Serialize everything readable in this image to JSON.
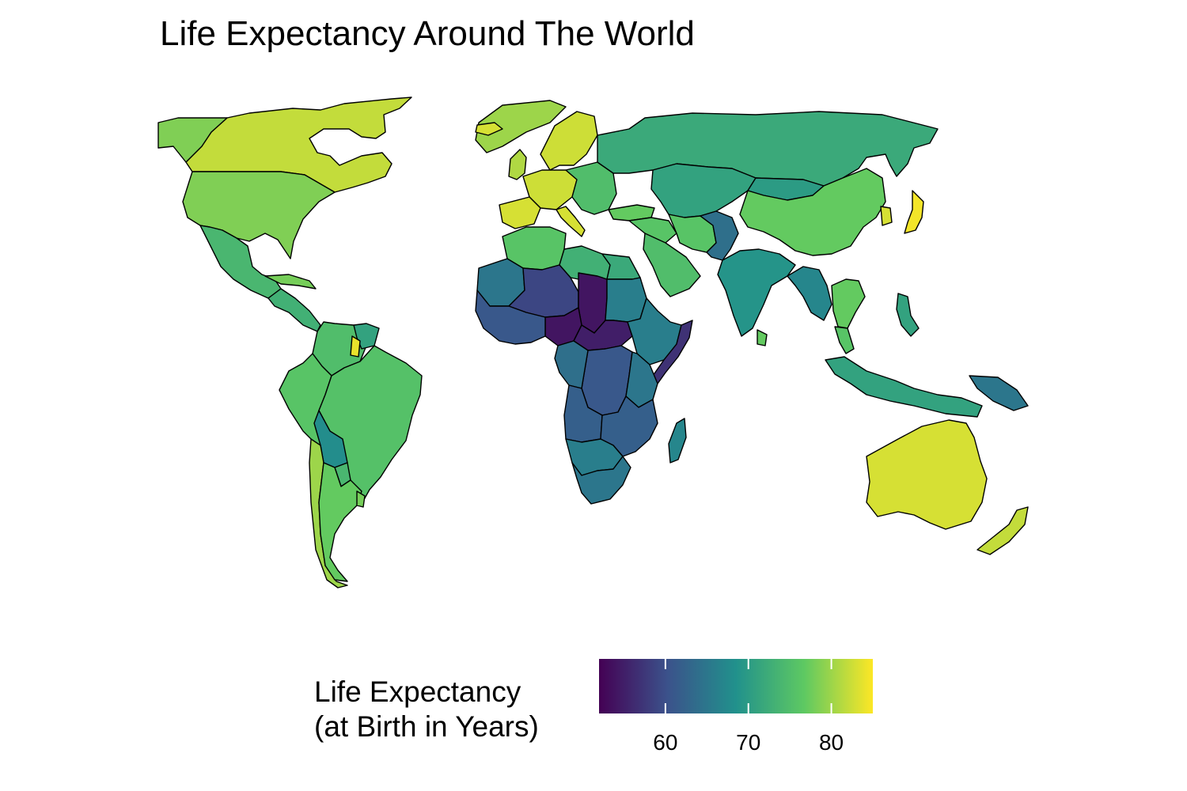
{
  "title": "Life Expectancy Around The World",
  "legend": {
    "title_line1": "Life Expectancy",
    "title_line2": "(at Birth in Years)",
    "min": 52,
    "max": 85,
    "ticks": [
      {
        "value": 60,
        "label": "60"
      },
      {
        "value": 70,
        "label": "70"
      },
      {
        "value": 80,
        "label": "80"
      }
    ],
    "palette": [
      "#440154",
      "#3b528b",
      "#21918c",
      "#5ec962",
      "#fde725"
    ]
  },
  "chart_data": {
    "type": "choropleth",
    "title": "Life Expectancy Around The World",
    "value_label": "Life Expectancy (at Birth in Years)",
    "color_scale": "viridis",
    "range": [
      52,
      85
    ],
    "regions": [
      {
        "name": "Canada",
        "value": 82
      },
      {
        "name": "Alaska / United States",
        "value": 78.5
      },
      {
        "name": "United States",
        "value": 78.5
      },
      {
        "name": "Greenland",
        "value": 80
      },
      {
        "name": "Mexico",
        "value": 74
      },
      {
        "name": "Central America",
        "value": 73
      },
      {
        "name": "Cuba",
        "value": 78
      },
      {
        "name": "Colombia / Venezuela",
        "value": 75
      },
      {
        "name": "Guyana / Suriname",
        "value": 71
      },
      {
        "name": "French Guiana",
        "value": 84
      },
      {
        "name": "Ecuador / Peru",
        "value": 76
      },
      {
        "name": "Brazil",
        "value": 75.5
      },
      {
        "name": "Bolivia",
        "value": 68
      },
      {
        "name": "Paraguay",
        "value": 74
      },
      {
        "name": "Chile",
        "value": 80
      },
      {
        "name": "Argentina",
        "value": 77
      },
      {
        "name": "Uruguay",
        "value": 78
      },
      {
        "name": "Iceland",
        "value": 83
      },
      {
        "name": "Scandinavia",
        "value": 82.5
      },
      {
        "name": "United Kingdom",
        "value": 81
      },
      {
        "name": "Western Europe",
        "value": 82.5
      },
      {
        "name": "Spain / Portugal",
        "value": 83
      },
      {
        "name": "Italy",
        "value": 83
      },
      {
        "name": "Eastern Europe",
        "value": 75
      },
      {
        "name": "Russia",
        "value": 72
      },
      {
        "name": "Kazakhstan / Central Asia",
        "value": 71
      },
      {
        "name": "Mongolia",
        "value": 70
      },
      {
        "name": "China",
        "value": 77
      },
      {
        "name": "Japan",
        "value": 84.5
      },
      {
        "name": "South Korea",
        "value": 83
      },
      {
        "name": "Turkey",
        "value": 77
      },
      {
        "name": "Middle East",
        "value": 76
      },
      {
        "name": "Saudi Arabia",
        "value": 75
      },
      {
        "name": "Iran",
        "value": 76
      },
      {
        "name": "Afghanistan / Pakistan",
        "value": 64
      },
      {
        "name": "India",
        "value": 69
      },
      {
        "name": "Myanmar / SE Asia",
        "value": 67
      },
      {
        "name": "Thailand / Vietnam",
        "value": 77
      },
      {
        "name": "Malaysia",
        "value": 76
      },
      {
        "name": "Sri Lanka",
        "value": 77
      },
      {
        "name": "Indonesia",
        "value": 71
      },
      {
        "name": "Philippines",
        "value": 71
      },
      {
        "name": "Papua New Guinea",
        "value": 65
      },
      {
        "name": "Australia",
        "value": 83
      },
      {
        "name": "New Zealand",
        "value": 82
      },
      {
        "name": "Morocco / Algeria",
        "value": 76
      },
      {
        "name": "Libya",
        "value": 73
      },
      {
        "name": "Egypt",
        "value": 72
      },
      {
        "name": "Western Sahara / Mauritania",
        "value": 65
      },
      {
        "name": "Mali / Niger",
        "value": 59
      },
      {
        "name": "Chad",
        "value": 54
      },
      {
        "name": "Nigeria",
        "value": 54
      },
      {
        "name": "West Africa coast",
        "value": 61
      },
      {
        "name": "Sudan",
        "value": 66
      },
      {
        "name": "South Sudan / CAR",
        "value": 55
      },
      {
        "name": "Ethiopia / Horn",
        "value": 66
      },
      {
        "name": "Somalia",
        "value": 57
      },
      {
        "name": "Congo (DRC)",
        "value": 61
      },
      {
        "name": "Central Africa west",
        "value": 64
      },
      {
        "name": "East Africa",
        "value": 65
      },
      {
        "name": "Angola",
        "value": 62
      },
      {
        "name": "Zambia / Mozambique",
        "value": 62
      },
      {
        "name": "Namibia / Botswana",
        "value": 66
      },
      {
        "name": "South Africa",
        "value": 65
      },
      {
        "name": "Madagascar",
        "value": 67
      }
    ]
  }
}
